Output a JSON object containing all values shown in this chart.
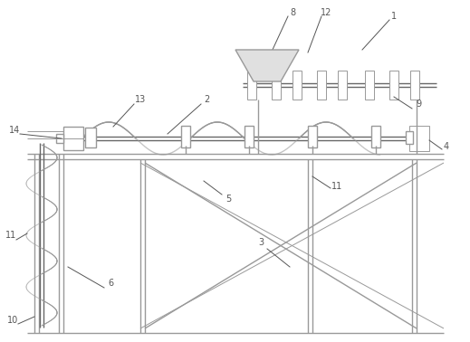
{
  "background_color": "#ffffff",
  "line_color": "#999999",
  "line_color_dark": "#666666",
  "label_color": "#555555",
  "figure_width": 5.19,
  "figure_height": 3.78,
  "dpi": 100
}
